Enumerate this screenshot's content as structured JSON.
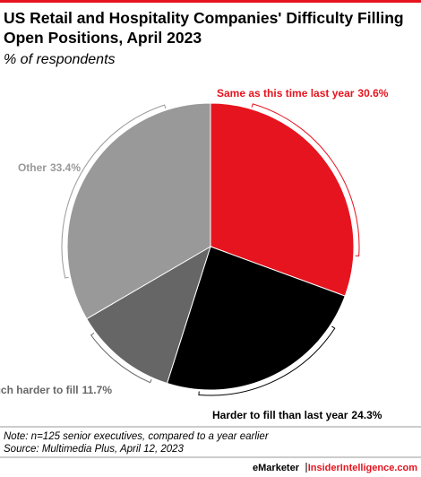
{
  "chart_data": {
    "type": "pie",
    "title": "US Retail and Hospitality Companies' Difficulty Filling Open Positions, April 2023",
    "subtitle": "% of respondents",
    "categories": [
      "Same as this time last year",
      "Harder to fill than last year",
      "Much harder to fill",
      "Other"
    ],
    "values": [
      30.6,
      24.3,
      11.7,
      33.4
    ],
    "value_labels": [
      "30.6%",
      "24.3%",
      "11.7%",
      "33.4%"
    ],
    "colors": [
      "#e6141e",
      "#000000",
      "#666666",
      "#999999"
    ],
    "label_colors": [
      "#e6141e",
      "#000000",
      "#666666",
      "#999999"
    ],
    "note": "Note: n=125 senior executives, compared to a year earlier",
    "source": "Source: Multimedia Plus, April 12, 2023",
    "credit": [
      "eMarketer",
      "InsiderIntelligence.com"
    ]
  }
}
